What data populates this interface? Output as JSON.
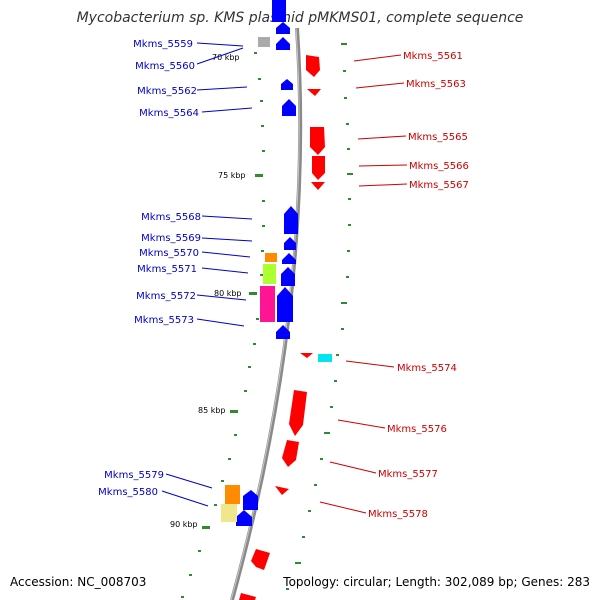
{
  "title": "Mycobacterium sp. KMS plasmid pMKMS01, complete sequence",
  "accession": "Accession: NC_008703",
  "summary": "Topology: circular; Length: 302,089 bp; Genes: 283",
  "colors": {
    "backbone": "#888888",
    "tick": "#2e8b2e",
    "left_label": "#0000cc",
    "right_label": "#cc0000",
    "forward_gene": "#0000ff",
    "reverse_gene": "#ff0000"
  },
  "scale_labels": [
    "70 kbp",
    "75 kbp",
    "80 kbp",
    "85 kbp",
    "90 kbp"
  ],
  "left_genes": [
    "Mkms_5559",
    "Mkms_5560",
    "Mkms_5562",
    "Mkms_5564",
    "Mkms_5568",
    "Mkms_5569",
    "Mkms_5570",
    "Mkms_5571",
    "Mkms_5572",
    "Mkms_5573",
    "Mkms_5579",
    "Mkms_5580"
  ],
  "right_genes": [
    "Mkms_5561",
    "Mkms_5563",
    "Mkms_5565",
    "Mkms_5566",
    "Mkms_5567",
    "Mkms_5574",
    "Mkms_5576",
    "Mkms_5577",
    "Mkms_5578"
  ]
}
